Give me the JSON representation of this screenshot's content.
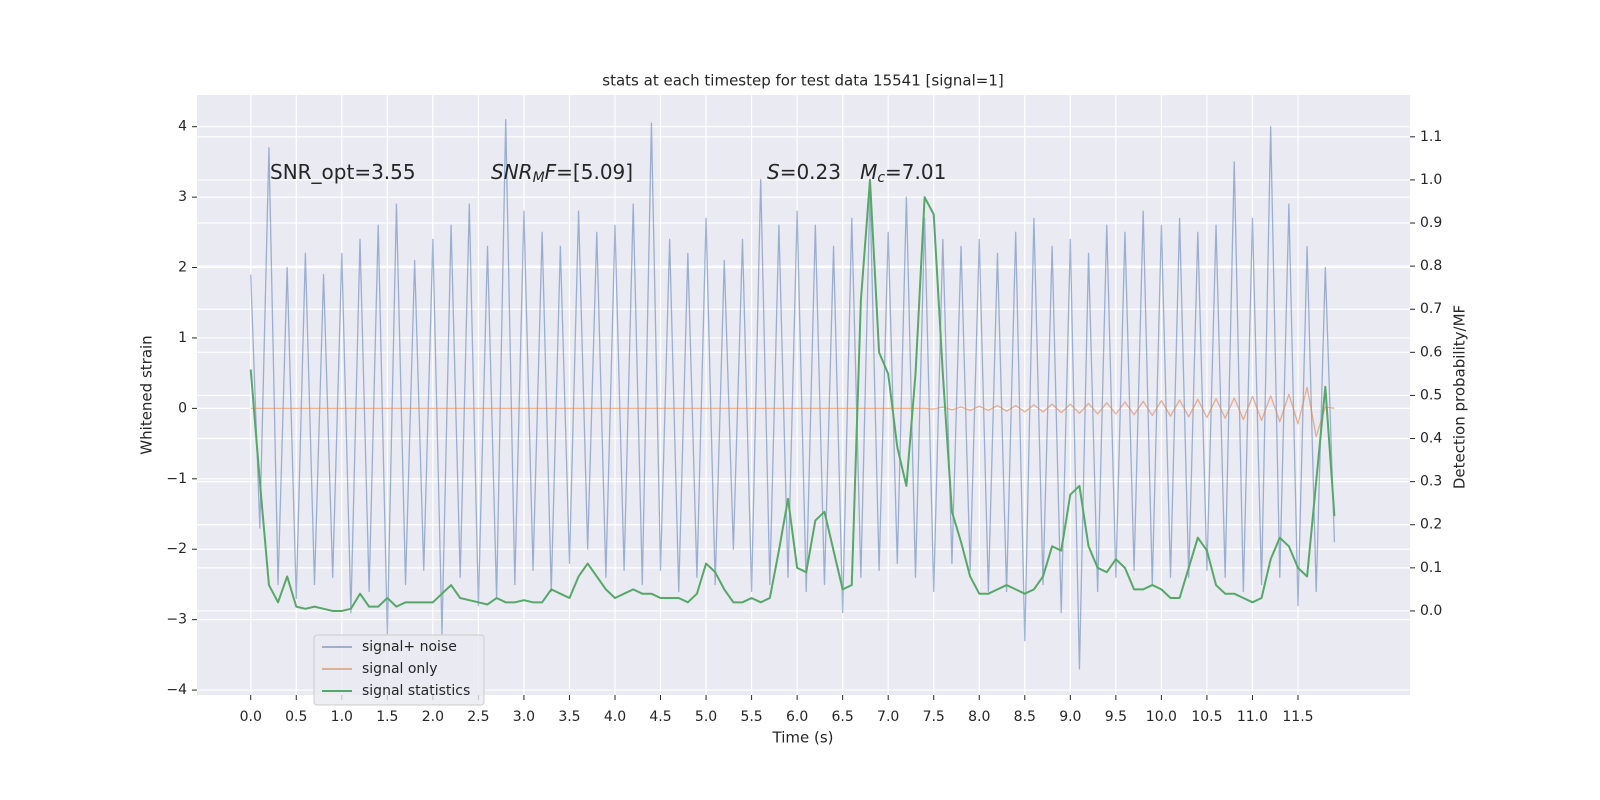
{
  "chart_data": {
    "type": "line",
    "title": "stats at each timestep for test data 15541 [signal=1]",
    "xlabel": "Time (s)",
    "ylabel": "Whitened strain",
    "y2label": "Detection probability/MF",
    "annotations": [
      [
        {
          "text": "SNR_opt=3.55"
        }
      ],
      [
        {
          "text": "SNR",
          "style": "italic"
        },
        {
          "text": "M",
          "style": "sub"
        },
        {
          "text": "F",
          "style": "italic"
        },
        {
          "text": "=[5.09]"
        }
      ],
      [
        {
          "text": "S",
          "style": "italic"
        },
        {
          "text": "=0.23   "
        },
        {
          "text": "M",
          "style": "italic"
        },
        {
          "text": "c",
          "style": "sub"
        },
        {
          "text": "=7.01"
        }
      ]
    ],
    "x": [
      0,
      0.1,
      0.2,
      0.3,
      0.4,
      0.5,
      0.6,
      0.7,
      0.8,
      0.9,
      1,
      1.1,
      1.2,
      1.3,
      1.4,
      1.5,
      1.6,
      1.7,
      1.8,
      1.9,
      2,
      2.1,
      2.2,
      2.3,
      2.4,
      2.5,
      2.6,
      2.7,
      2.8,
      2.9,
      3,
      3.1,
      3.2,
      3.3,
      3.4,
      3.5,
      3.6,
      3.7,
      3.8,
      3.9,
      4,
      4.1,
      4.2,
      4.3,
      4.4,
      4.5,
      4.6,
      4.7,
      4.8,
      4.9,
      5,
      5.1,
      5.2,
      5.3,
      5.4,
      5.5,
      5.6,
      5.7,
      5.8,
      5.9,
      6,
      6.1,
      6.2,
      6.3,
      6.4,
      6.5,
      6.6,
      6.7,
      6.8,
      6.9,
      7,
      7.1,
      7.2,
      7.3,
      7.4,
      7.5,
      7.6,
      7.7,
      7.8,
      7.9,
      8,
      8.1,
      8.2,
      8.3,
      8.4,
      8.5,
      8.6,
      8.7,
      8.8,
      8.9,
      9,
      9.1,
      9.2,
      9.3,
      9.4,
      9.5,
      9.6,
      9.7,
      9.8,
      9.9,
      10,
      10.1,
      10.2,
      10.3,
      10.4,
      10.5,
      10.6,
      10.7,
      10.8,
      10.9,
      11,
      11.1,
      11.2,
      11.3,
      11.4,
      11.5,
      11.6,
      11.7,
      11.8,
      11.9
    ],
    "series": [
      {
        "name": "signal+ noise",
        "color": "#4c72b0",
        "alpha": 0.5,
        "axis": "y",
        "values": [
          1.9,
          -1.7,
          3.7,
          -2.5,
          2.0,
          -2.7,
          2.2,
          -2.5,
          1.9,
          -2.4,
          2.2,
          -2.9,
          2.4,
          -2.6,
          2.6,
          -3.2,
          2.9,
          -2.5,
          2.1,
          -2.3,
          2.4,
          -3.2,
          2.6,
          -2.4,
          2.9,
          -2.8,
          2.3,
          -2.7,
          4.1,
          -2.5,
          2.8,
          -2.3,
          2.5,
          -2.6,
          2.3,
          -2.2,
          2.8,
          -2.0,
          2.5,
          -2.4,
          2.6,
          -2.3,
          2.9,
          -2.5,
          4.05,
          -2.3,
          2.4,
          -2.6,
          2.2,
          -2.4,
          2.7,
          -2.5,
          2.1,
          -2.0,
          2.4,
          -2.6,
          3.25,
          -2.5,
          2.6,
          -2.4,
          2.8,
          -2.6,
          2.6,
          -2.5,
          2.3,
          -2.9,
          2.7,
          -2.4,
          3.1,
          -2.3,
          2.5,
          -2.2,
          3.0,
          -2.4,
          2.7,
          -2.6,
          2.4,
          -2.2,
          2.3,
          -2.3,
          2.4,
          -2.6,
          2.2,
          -2.6,
          2.5,
          -3.3,
          2.7,
          -2.5,
          2.3,
          -2.9,
          2.4,
          -3.7,
          2.2,
          -2.6,
          2.6,
          -2.4,
          2.5,
          -2.3,
          2.8,
          -2.5,
          2.6,
          -2.4,
          2.7,
          -2.4,
          2.5,
          -2.3,
          2.6,
          -2.4,
          3.5,
          -2.6,
          2.7,
          -2.5,
          4.0,
          -2.4,
          2.9,
          -2.8,
          2.3,
          -2.6,
          2.0,
          -1.9
        ]
      },
      {
        "name": "signal only",
        "color": "#dd8452",
        "alpha": 0.6,
        "axis": "y",
        "values": [
          0,
          0,
          0,
          0,
          0,
          0,
          0,
          0,
          0,
          0,
          0,
          0,
          0,
          0,
          0,
          0,
          0,
          0,
          0,
          0,
          0,
          0,
          0,
          0,
          0,
          0,
          0,
          0,
          0,
          0,
          0,
          0,
          0,
          0,
          0,
          0,
          0,
          0,
          0,
          0,
          0,
          0,
          0,
          0,
          0,
          0,
          0,
          0,
          0,
          0,
          0,
          0,
          0,
          0,
          0,
          0,
          0,
          0,
          0,
          0,
          0,
          0,
          0,
          0,
          0,
          0,
          0,
          0,
          0,
          0,
          0,
          0,
          0,
          0,
          0,
          -0.01,
          0.02,
          -0.02,
          0.02,
          -0.03,
          0.03,
          -0.03,
          0.04,
          -0.04,
          0.04,
          -0.05,
          0.05,
          -0.05,
          0.06,
          -0.06,
          0.06,
          -0.07,
          0.07,
          -0.08,
          0.08,
          -0.08,
          0.09,
          -0.09,
          0.1,
          -0.1,
          0.11,
          -0.11,
          0.12,
          -0.12,
          0.13,
          -0.13,
          0.14,
          -0.14,
          0.15,
          -0.16,
          0.17,
          -0.17,
          0.18,
          -0.19,
          0.2,
          -0.22,
          0.3,
          -0.4,
          0.02,
          0
        ]
      },
      {
        "name": "signal statistics",
        "color": "#55a868",
        "alpha": 1,
        "axis": "y2",
        "values": [
          0.56,
          0.3,
          0.06,
          0.02,
          0.08,
          0.01,
          0.005,
          0.01,
          0.005,
          0,
          0,
          0.005,
          0.04,
          0.01,
          0.01,
          0.03,
          0.01,
          0.02,
          0.02,
          0.02,
          0.02,
          0.04,
          0.06,
          0.03,
          0.025,
          0.02,
          0.015,
          0.03,
          0.02,
          0.02,
          0.025,
          0.02,
          0.02,
          0.05,
          0.04,
          0.03,
          0.08,
          0.11,
          0.08,
          0.05,
          0.03,
          0.04,
          0.05,
          0.04,
          0.04,
          0.03,
          0.03,
          0.03,
          0.02,
          0.04,
          0.11,
          0.09,
          0.05,
          0.02,
          0.02,
          0.03,
          0.02,
          0.03,
          0.14,
          0.26,
          0.1,
          0.09,
          0.21,
          0.23,
          0.14,
          0.05,
          0.06,
          0.72,
          1.0,
          0.6,
          0.55,
          0.38,
          0.29,
          0.55,
          0.96,
          0.92,
          0.55,
          0.23,
          0.16,
          0.08,
          0.04,
          0.04,
          0.05,
          0.06,
          0.05,
          0.04,
          0.05,
          0.08,
          0.15,
          0.14,
          0.27,
          0.29,
          0.15,
          0.1,
          0.09,
          0.12,
          0.1,
          0.05,
          0.05,
          0.06,
          0.05,
          0.03,
          0.03,
          0.1,
          0.17,
          0.14,
          0.06,
          0.04,
          0.04,
          0.03,
          0.02,
          0.03,
          0.12,
          0.17,
          0.15,
          0.1,
          0.08,
          0.3,
          0.52,
          0.22
        ]
      }
    ],
    "xlim": [
      -0.59,
      12.73
    ],
    "xticks": [
      {
        "value": 0,
        "label": "0.0"
      },
      {
        "value": 0.5,
        "label": "0.5"
      },
      {
        "value": 1,
        "label": "1.0"
      },
      {
        "value": 1.5,
        "label": "1.5"
      },
      {
        "value": 2,
        "label": "2.0"
      },
      {
        "value": 2.5,
        "label": "2.5"
      },
      {
        "value": 3,
        "label": "3.0"
      },
      {
        "value": 3.5,
        "label": "3.5"
      },
      {
        "value": 4,
        "label": "4.0"
      },
      {
        "value": 4.5,
        "label": "4.5"
      },
      {
        "value": 5,
        "label": "5.0"
      },
      {
        "value": 5.5,
        "label": "5.5"
      },
      {
        "value": 6,
        "label": "6.0"
      },
      {
        "value": 6.5,
        "label": "6.5"
      },
      {
        "value": 7,
        "label": "7.0"
      },
      {
        "value": 7.5,
        "label": "7.5"
      },
      {
        "value": 8,
        "label": "8.0"
      },
      {
        "value": 8.5,
        "label": "8.5"
      },
      {
        "value": 9,
        "label": "9.0"
      },
      {
        "value": 9.5,
        "label": "9.5"
      },
      {
        "value": 10,
        "label": "10.0"
      },
      {
        "value": 10.5,
        "label": "10.5"
      },
      {
        "value": 11,
        "label": "11.0"
      },
      {
        "value": 11.5,
        "label": "11.5"
      }
    ],
    "ylim": [
      -4.07,
      4.45
    ],
    "yticks": [
      {
        "value": -4,
        "label": "−4"
      },
      {
        "value": -3,
        "label": "−3"
      },
      {
        "value": -2,
        "label": "−2"
      },
      {
        "value": -1,
        "label": "−1"
      },
      0,
      1,
      2,
      3,
      4
    ],
    "y2lim": [
      -0.195,
      1.197
    ],
    "y2ticks": [
      {
        "value": 0,
        "label": "0.0"
      },
      {
        "value": 0.1,
        "label": "0.1"
      },
      {
        "value": 0.2,
        "label": "0.2"
      },
      {
        "value": 0.3,
        "label": "0.3"
      },
      {
        "value": 0.4,
        "label": "0.4"
      },
      {
        "value": 0.5,
        "label": "0.5"
      },
      {
        "value": 0.6,
        "label": "0.6"
      },
      {
        "value": 0.7,
        "label": "0.7"
      },
      {
        "value": 0.8,
        "label": "0.8"
      },
      {
        "value": 0.9,
        "label": "0.9"
      },
      {
        "value": 1,
        "label": "1.0"
      },
      {
        "value": 1.1,
        "label": "1.1"
      }
    ],
    "grid": true,
    "legend": "lower left"
  }
}
